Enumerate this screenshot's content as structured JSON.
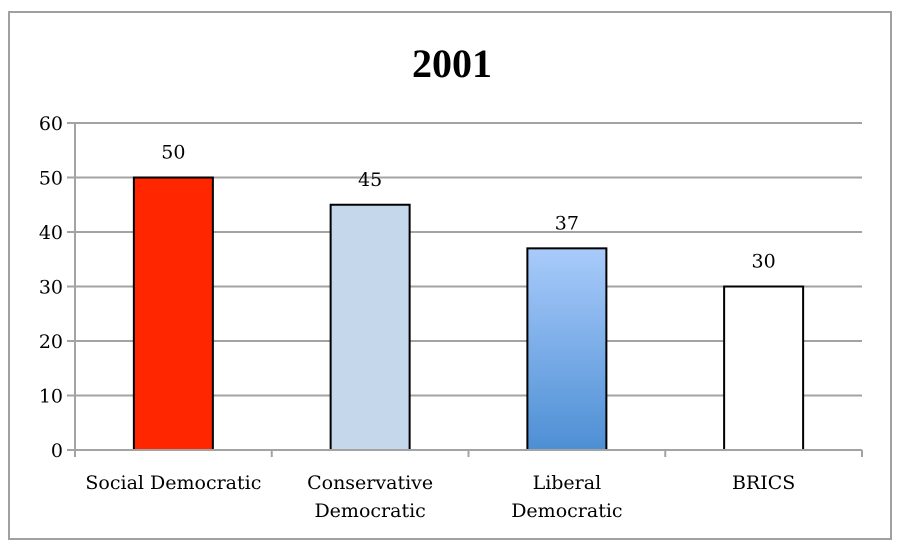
{
  "chart_data": {
    "type": "bar",
    "title": "2001",
    "categories": [
      "Social Democratic",
      "Conservative Democratic",
      "Liberal Democratic",
      "BRICS"
    ],
    "category_lines": [
      [
        "Social Democratic"
      ],
      [
        "Conservative",
        "Democratic"
      ],
      [
        "Liberal",
        "Democratic"
      ],
      [
        "BRICS"
      ]
    ],
    "values": [
      50,
      45,
      37,
      30
    ],
    "data_labels": [
      "50",
      "45",
      "37",
      "30"
    ],
    "bar_colors": [
      "#ff2600",
      "#c5d7ea",
      "gradient:#a8c9f8-#4f8fd3",
      "#ffffff"
    ],
    "xlabel": "",
    "ylabel": "",
    "ylim": [
      0,
      60
    ],
    "yticks": [
      0,
      10,
      20,
      30,
      40,
      50,
      60
    ],
    "grid": true,
    "legend": null
  }
}
